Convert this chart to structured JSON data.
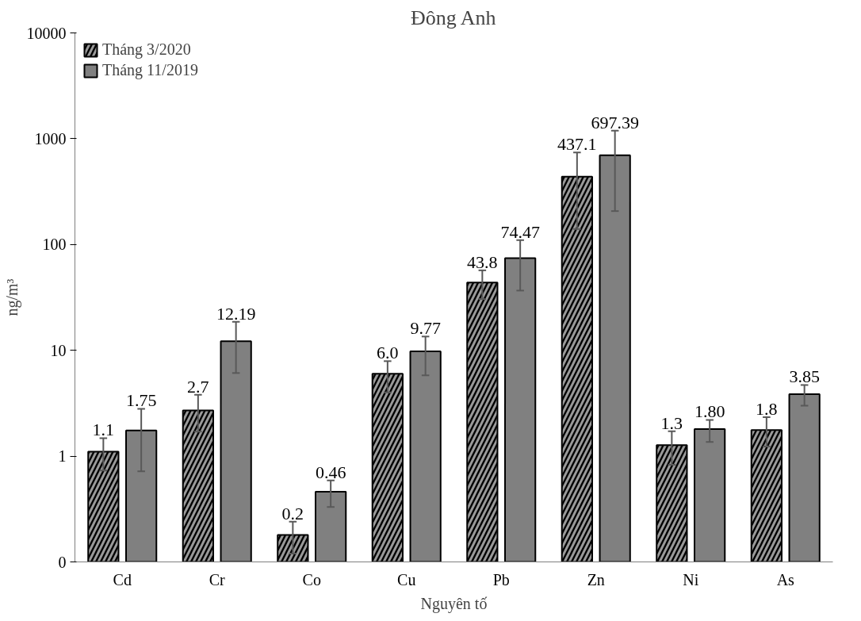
{
  "chart_data": {
    "type": "bar",
    "title": "Đông Anh",
    "xlabel": "Nguyên tố",
    "ylabel": "ng/m³",
    "categories": [
      "Cd",
      "Cr",
      "Co",
      "Cu",
      "Pb",
      "Zn",
      "Ni",
      "As"
    ],
    "series": [
      {
        "name": "Tháng 3/2020",
        "color": "#000000",
        "values": [
          1.1,
          2.7,
          0.18,
          6.0,
          43.8,
          437.1,
          1.27,
          1.76
        ],
        "value_labels": [
          "1.1",
          "2.7",
          "0.2",
          "6.0",
          "43.8",
          "437.1",
          "1.3",
          "1.8"
        ],
        "errors": [
          [
            0.73,
            1.48
          ],
          [
            1.7,
            3.8
          ],
          [
            0.12,
            0.24
          ],
          [
            4.0,
            7.9
          ],
          [
            30.5,
            57
          ],
          [
            140,
            740
          ],
          [
            0.83,
            1.72
          ],
          [
            1.23,
            2.33
          ]
        ]
      },
      {
        "name": "Tháng 11/2019",
        "color": "#808080",
        "values": [
          1.75,
          12.19,
          0.46,
          9.77,
          74.47,
          697.39,
          1.8,
          3.85
        ],
        "value_labels": [
          "1.75",
          "12.19",
          "0.46",
          "9.77",
          "74.47",
          "697.39",
          "1.80",
          "3.85"
        ],
        "errors": [
          [
            0.72,
            2.8
          ],
          [
            6.1,
            18.6
          ],
          [
            0.33,
            0.59
          ],
          [
            5.8,
            13.5
          ],
          [
            36.7,
            110
          ],
          [
            207,
            1190
          ],
          [
            1.36,
            2.2
          ],
          [
            3.0,
            4.7
          ]
        ]
      }
    ],
    "log": "y",
    "ylim": [
      0.1,
      10000
    ],
    "yticks": [
      {
        "value": 0.1,
        "label": "0"
      },
      1,
      10,
      100,
      1000,
      10000
    ],
    "grid": false,
    "legend": "top left"
  }
}
